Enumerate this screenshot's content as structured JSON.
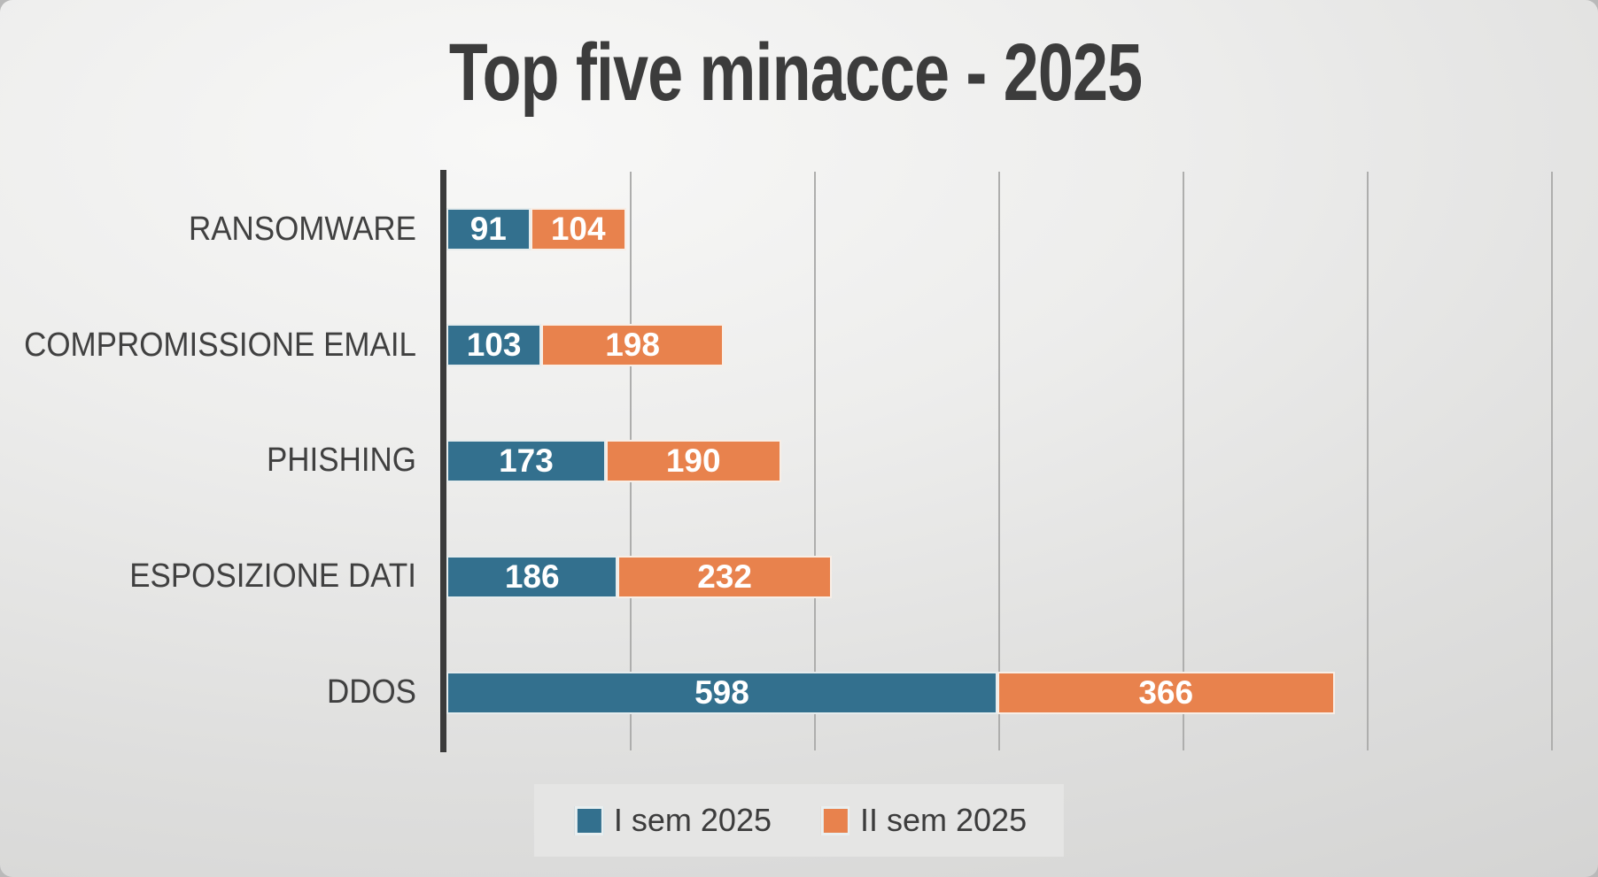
{
  "chart_data": {
    "type": "bar",
    "orientation": "horizontal-stacked",
    "title": "Top five minacce - 2025",
    "categories": [
      "RANSOMWARE",
      "COMPROMISSIONE EMAIL",
      "PHISHING",
      "ESPOSIZIONE DATI",
      "DDOS"
    ],
    "series": [
      {
        "name": "I sem 2025",
        "color": "#33708E",
        "values": [
          91,
          103,
          173,
          186,
          598
        ]
      },
      {
        "name": "II sem 2025",
        "color": "#E8824D",
        "values": [
          104,
          198,
          190,
          232,
          366
        ]
      }
    ],
    "totals": [
      195,
      301,
      363,
      418,
      964
    ],
    "xlim": [
      0,
      1200
    ],
    "grid_step": 200,
    "grid_visible": true,
    "x_tick_labels_visible": false,
    "legend_position": "bottom",
    "value_labels": "inside-center-white"
  },
  "colors": {
    "title_text": "#3C3C3C",
    "category_text": "#404040",
    "value_label_text": "#FFFFFF",
    "axis_line": "#3B3B3B",
    "gridline": "#AEAEAD",
    "legend_background": "#E5E5E4",
    "background_light": "#F8F8F7",
    "background_dark": "#D0D0CF"
  }
}
